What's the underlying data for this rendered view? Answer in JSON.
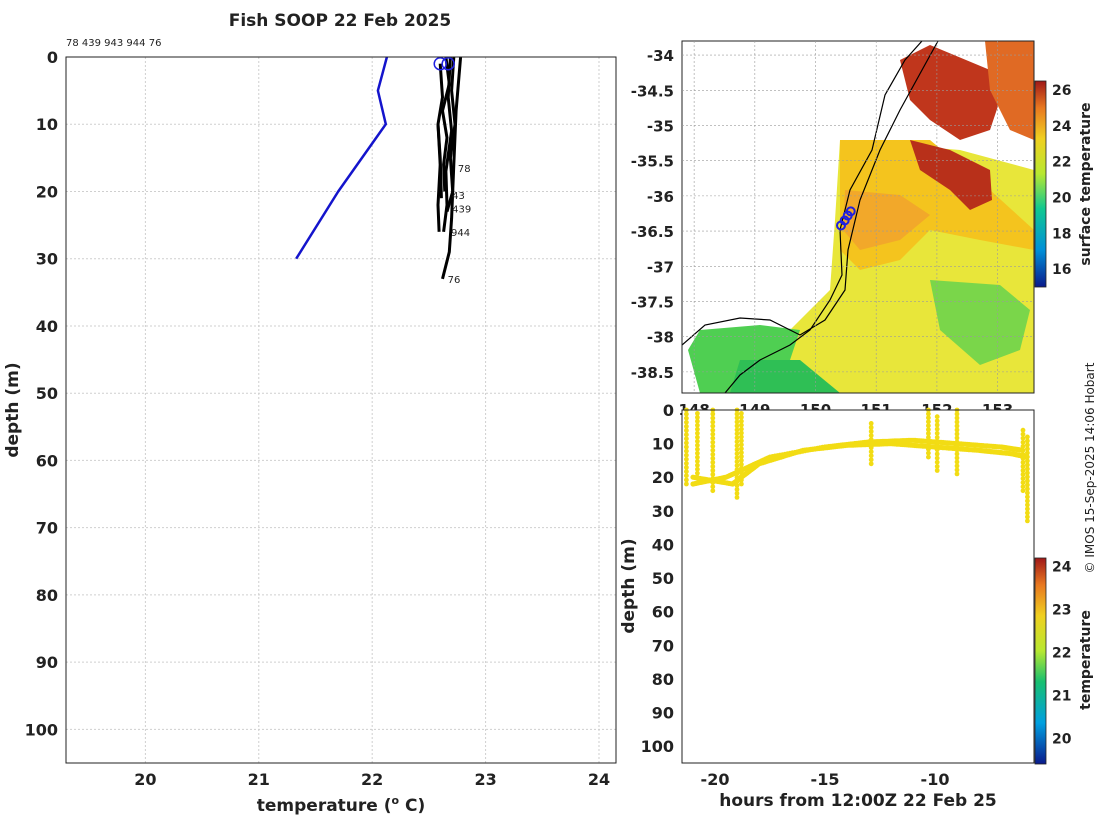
{
  "title": "Fish SOOP 22 Feb 2025",
  "credit": "© IMOS 15-Sep-2025 14:06 Hobart",
  "colors": {
    "profile_line": "#1414cc",
    "fish_profiles": "#000000",
    "marker": "#2020e0",
    "grid": "#cfcfcf"
  },
  "chart_data": [
    {
      "type": "line",
      "name": "depth-profile",
      "header_ids": "78 439 943 944 76",
      "xlabel": "temperature (º C)",
      "xlabel_main": "temperature (",
      "xlabel_sup": "o",
      "xlabel_end": " C)",
      "ylabel": "depth (m)",
      "xlim": [
        19.3,
        24.15
      ],
      "ylim": [
        105,
        0
      ],
      "x_ticks": [
        20,
        21,
        22,
        23,
        24
      ],
      "y_ticks": [
        0,
        10,
        20,
        30,
        40,
        50,
        60,
        70,
        80,
        90,
        100
      ],
      "grid": true,
      "series": [
        {
          "name": "reference-profile",
          "color": "#1414cc",
          "points": [
            [
              22.13,
              0
            ],
            [
              22.05,
              5
            ],
            [
              22.12,
              10
            ],
            [
              21.7,
              20
            ],
            [
              21.33,
              30
            ]
          ]
        },
        {
          "name": "fish-78",
          "color": "#000000",
          "points": [
            [
              22.65,
              0
            ],
            [
              22.68,
              4
            ],
            [
              22.62,
              8
            ],
            [
              22.66,
              12
            ],
            [
              22.63,
              16
            ],
            [
              22.64,
              20
            ]
          ]
        },
        {
          "name": "fish-439",
          "color": "#000000",
          "points": [
            [
              22.72,
              0
            ],
            [
              22.7,
              5
            ],
            [
              22.73,
              10
            ],
            [
              22.69,
              15
            ],
            [
              22.71,
              20
            ],
            [
              22.66,
              23
            ]
          ]
        },
        {
          "name": "fish-943",
          "color": "#000000",
          "points": [
            [
              22.6,
              1
            ],
            [
              22.62,
              6
            ],
            [
              22.58,
              10
            ],
            [
              22.6,
              15
            ],
            [
              22.61,
              21
            ]
          ]
        },
        {
          "name": "fish-944",
          "color": "#000000",
          "points": [
            [
              22.69,
              0
            ],
            [
              22.67,
              6
            ],
            [
              22.7,
              11
            ],
            [
              22.65,
              17
            ],
            [
              22.66,
              22
            ],
            [
              22.63,
              26
            ]
          ]
        },
        {
          "name": "fish-76",
          "color": "#000000",
          "points": [
            [
              22.78,
              0
            ],
            [
              22.74,
              8
            ],
            [
              22.72,
              16
            ],
            [
              22.7,
              24
            ],
            [
              22.68,
              29
            ],
            [
              22.62,
              33
            ]
          ]
        },
        {
          "name": "fish-extra",
          "color": "#000000",
          "points": [
            [
              22.58,
              10
            ],
            [
              22.6,
              16
            ],
            [
              22.58,
              22
            ],
            [
              22.59,
              26
            ]
          ]
        }
      ],
      "annotations": [
        {
          "text": "78",
          "x": 22.72,
          "y": 16.5
        },
        {
          "text": "43",
          "x": 22.67,
          "y": 20.5
        },
        {
          "text": "439",
          "x": 22.67,
          "y": 22.5
        },
        {
          "text": "944",
          "x": 22.66,
          "y": 26
        },
        {
          "text": "76",
          "x": 22.63,
          "y": 33
        }
      ],
      "markers": [
        {
          "x": 22.6,
          "y": 1
        },
        {
          "x": 22.67,
          "y": 1
        }
      ]
    },
    {
      "type": "heatmap",
      "name": "sst-map",
      "colorbar_label": "surface temperature",
      "colorbar_ticks": [
        16,
        18,
        20,
        22,
        24,
        26
      ],
      "colorbar_range": [
        15,
        26.5
      ],
      "xlim": [
        147.8,
        153.6
      ],
      "ylim": [
        -38.8,
        -33.8
      ],
      "x_ticks": [
        148,
        149,
        150,
        151,
        152,
        153
      ],
      "y_ticks": [
        -34,
        -34.5,
        -35,
        -35.5,
        -36,
        -36.5,
        -37,
        -37.5,
        -38,
        -38.5
      ],
      "x_tick_labels": [
        "148",
        "149",
        "150",
        "151",
        "152",
        "153"
      ],
      "y_tick_labels": [
        "-34",
        "-34.5",
        "-35",
        "-35.5",
        "-36",
        "-36.5",
        "-37",
        "-37.5",
        "-38",
        "-38.5"
      ],
      "track": [
        [
          150.42,
          -36.42
        ],
        [
          150.48,
          -36.35
        ],
        [
          150.53,
          -36.28
        ],
        [
          150.58,
          -36.22
        ]
      ]
    },
    {
      "type": "scatter",
      "name": "depth-time",
      "xlabel": "hours from 12:00Z 22 Feb 25",
      "ylabel": "depth (m)",
      "colorbar_label": "temperature",
      "colorbar_ticks": [
        20,
        21,
        22,
        23,
        24
      ],
      "colorbar_range": [
        19.4,
        24.2
      ],
      "xlim": [
        -21.5,
        -5.5
      ],
      "ylim": [
        105,
        0
      ],
      "x_ticks": [
        -20,
        -15,
        -10
      ],
      "y_ticks": [
        0,
        10,
        20,
        30,
        40,
        50,
        60,
        70,
        80,
        90,
        100
      ],
      "point_color": "#f2dc14",
      "bands": [
        {
          "x": [
            -21.0,
            -19.2,
            -18.0,
            -16.0,
            -14.0,
            -12.0,
            -10.0,
            -8.0,
            -6.5,
            -5.8
          ],
          "y": [
            20,
            22,
            16,
            12,
            10.5,
            10,
            11,
            12,
            13,
            14
          ]
        },
        {
          "x": [
            -21.0,
            -19.5,
            -17.5,
            -15.0,
            -13.0,
            -11.0,
            -9.0,
            -7.0,
            -6.0
          ],
          "y": [
            22,
            20,
            14,
            11,
            9.5,
            9,
            10,
            11,
            12
          ]
        }
      ],
      "spikes": [
        {
          "x": -21.3,
          "y_top": 0,
          "y_bot": 22
        },
        {
          "x": -20.8,
          "y_top": 1,
          "y_bot": 20
        },
        {
          "x": -20.1,
          "y_top": 0,
          "y_bot": 24
        },
        {
          "x": -19.0,
          "y_top": 0,
          "y_bot": 26
        },
        {
          "x": -18.8,
          "y_top": 1,
          "y_bot": 22
        },
        {
          "x": -12.9,
          "y_top": 4,
          "y_bot": 16
        },
        {
          "x": -10.3,
          "y_top": 0,
          "y_bot": 14
        },
        {
          "x": -9.9,
          "y_top": 2,
          "y_bot": 18
        },
        {
          "x": -9.0,
          "y_top": 0,
          "y_bot": 19
        },
        {
          "x": -6.0,
          "y_top": 6,
          "y_bot": 24
        },
        {
          "x": -5.8,
          "y_top": 8,
          "y_bot": 33
        }
      ]
    }
  ]
}
